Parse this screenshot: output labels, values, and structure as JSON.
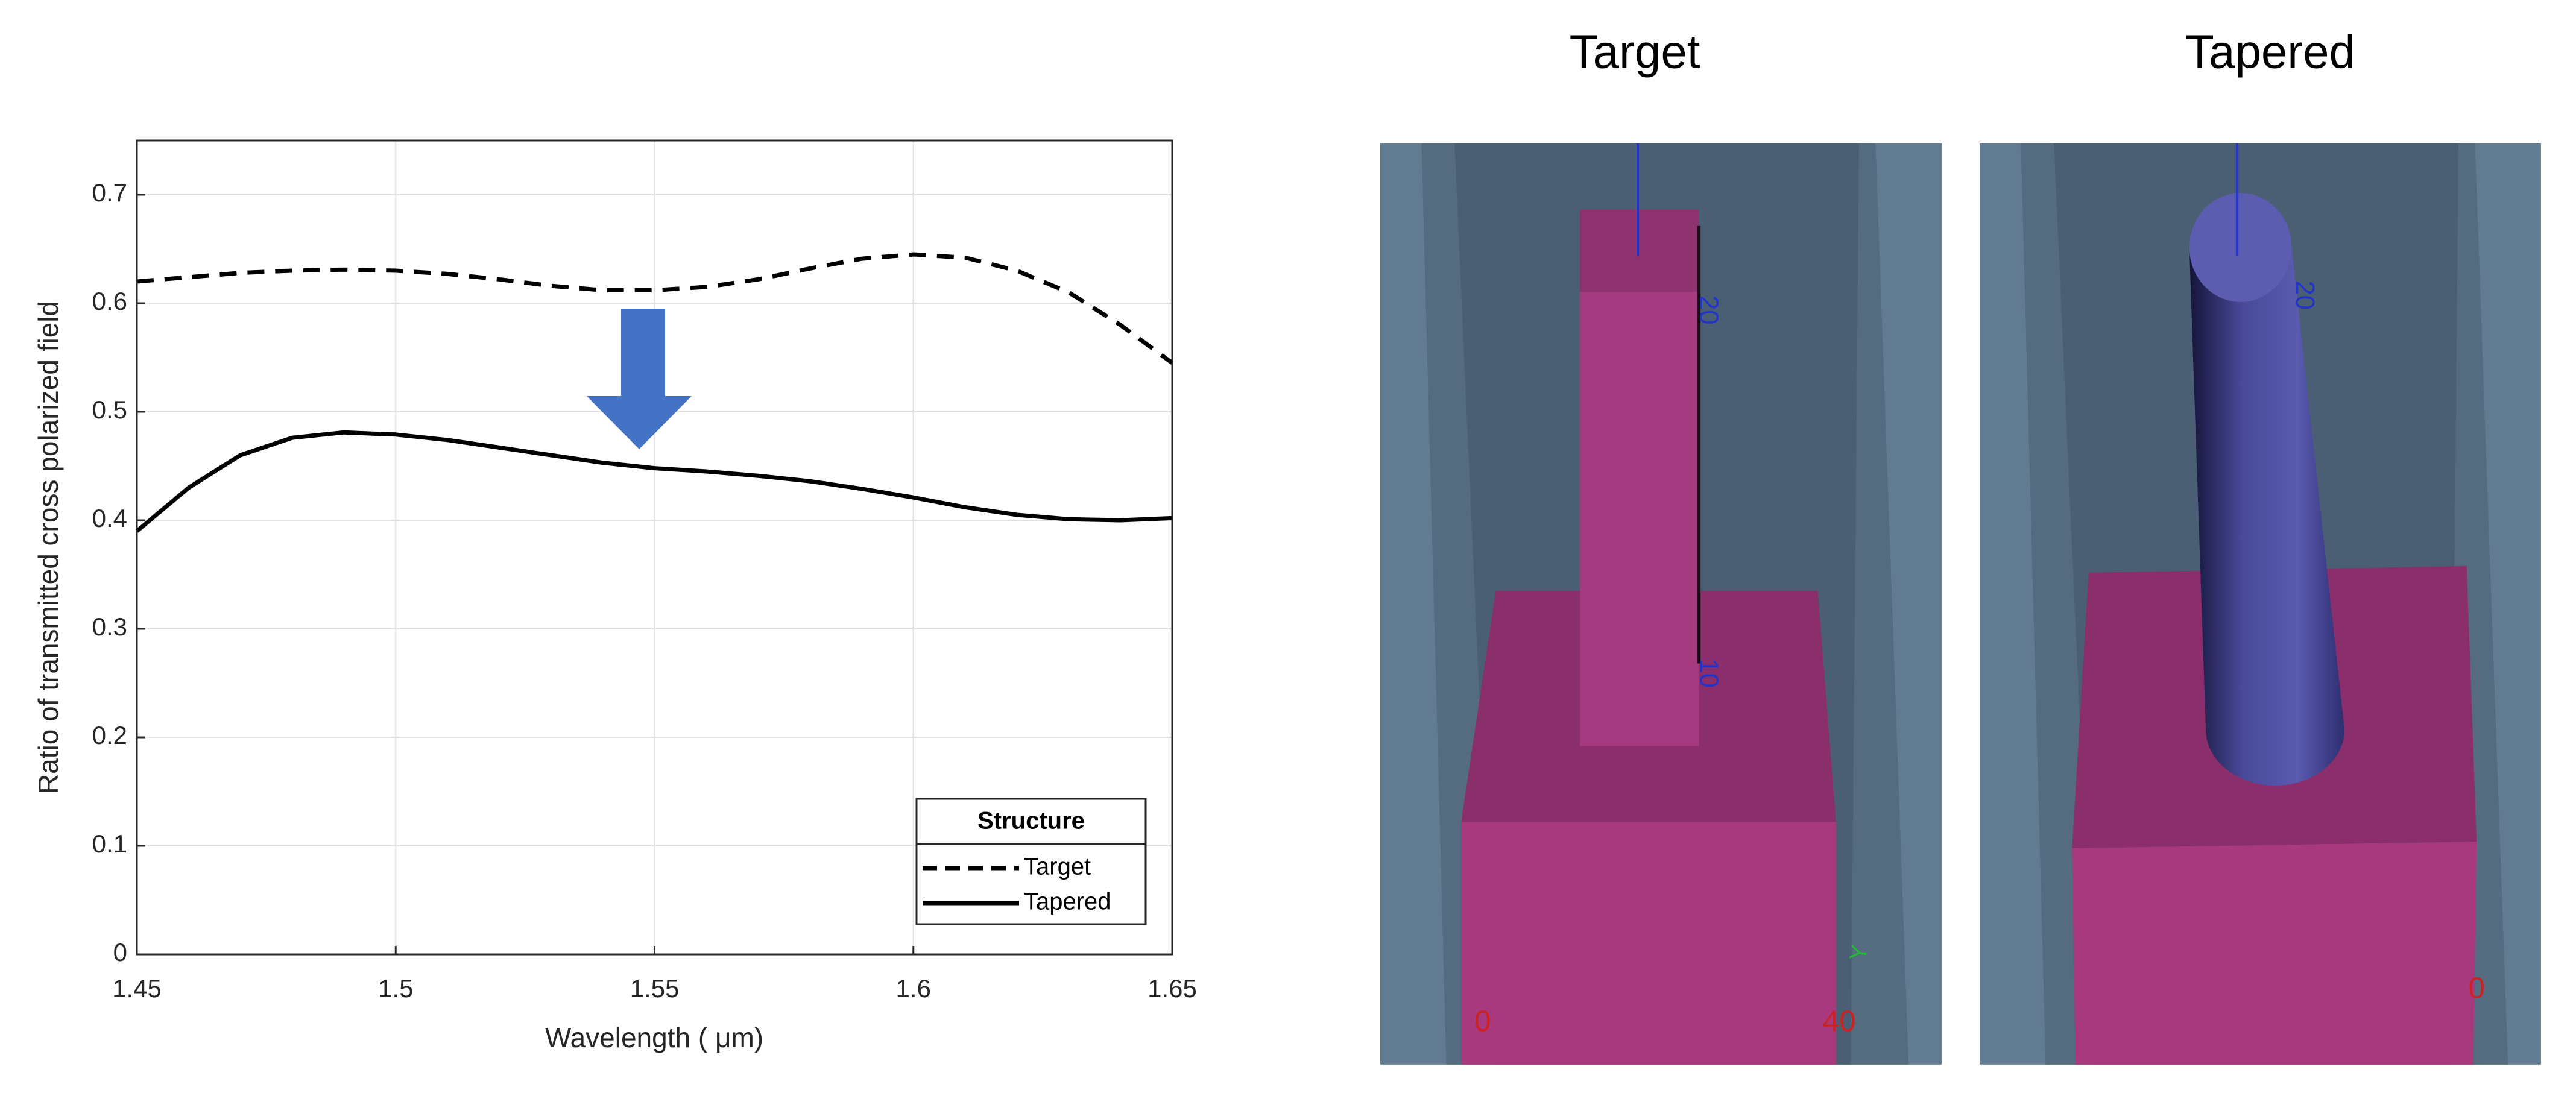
{
  "chart_data": {
    "type": "line",
    "xlabel": "Wavelength ( μm)",
    "ylabel": "Ratio of transmitted cross polarized field",
    "x": [
      1.45,
      1.46,
      1.47,
      1.48,
      1.49,
      1.5,
      1.51,
      1.52,
      1.53,
      1.54,
      1.55,
      1.56,
      1.57,
      1.58,
      1.59,
      1.6,
      1.61,
      1.62,
      1.63,
      1.64,
      1.65
    ],
    "series": [
      {
        "name": "Target",
        "color": "#000000",
        "linestyle": "dashed",
        "values": [
          0.62,
          0.624,
          0.628,
          0.63,
          0.631,
          0.63,
          0.627,
          0.622,
          0.616,
          0.612,
          0.612,
          0.615,
          0.622,
          0.632,
          0.641,
          0.645,
          0.642,
          0.63,
          0.61,
          0.58,
          0.545
        ]
      },
      {
        "name": "Tapered",
        "color": "#000000",
        "linestyle": "solid",
        "values": [
          0.39,
          0.43,
          0.46,
          0.476,
          0.481,
          0.479,
          0.474,
          0.467,
          0.46,
          0.453,
          0.448,
          0.445,
          0.441,
          0.436,
          0.429,
          0.421,
          0.412,
          0.405,
          0.401,
          0.4,
          0.402
        ]
      }
    ],
    "legend_title": "Structure",
    "legend": "lower right",
    "xlim": [
      1.45,
      1.65
    ],
    "xticks": [
      1.45,
      1.5,
      1.55,
      1.6,
      1.65
    ],
    "ylim": [
      0,
      0.75
    ],
    "yticks": [
      0,
      0.1,
      0.2,
      0.3,
      0.4,
      0.5,
      0.6,
      0.7
    ],
    "grid": true
  },
  "panels": [
    {
      "title": "Target",
      "labels": [
        "20",
        "10",
        "0",
        "40",
        "Y"
      ]
    },
    {
      "title": "Tapered",
      "labels": [
        "20",
        "0"
      ]
    }
  ]
}
